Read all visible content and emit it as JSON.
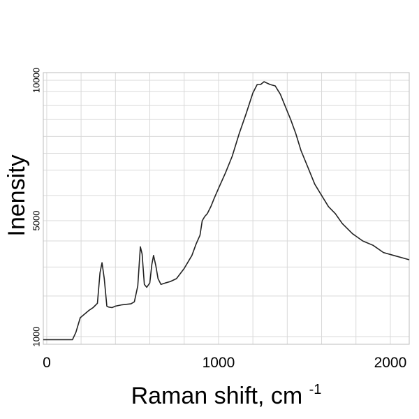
{
  "chart_data": {
    "type": "line",
    "title": "",
    "xlabel": "Raman shift, cm",
    "xlabel_superscript": "-1",
    "ylabel": "Inensity",
    "xlim": [
      -20,
      2110
    ],
    "ylim": [
      850,
      10100
    ],
    "x_ticks": [
      {
        "value": 0,
        "label": "0"
      },
      {
        "value": 1000,
        "label": "1000"
      },
      {
        "value": 2000,
        "label": "2000"
      }
    ],
    "y_ticks": [
      {
        "value": 1000,
        "label": "1000"
      },
      {
        "value": 5000,
        "label": "5000"
      },
      {
        "value": 10000,
        "label": "10000"
      }
    ],
    "x_grid_step": 200,
    "y_grid_values": [
      1000,
      2400,
      3400,
      4300,
      5000,
      5900,
      6800,
      7400,
      8000,
      8600,
      9100,
      9600,
      10000
    ],
    "grid": true,
    "series": [
      {
        "values_x": [
          -20,
          50,
          110,
          150,
          170,
          195,
          215,
          245,
          270,
          295,
          310,
          322,
          335,
          350,
          360,
          380,
          400,
          440,
          490,
          510,
          530,
          545,
          555,
          568,
          582,
          600,
          612,
          622,
          635,
          648,
          665,
          690,
          720,
          755,
          800,
          845,
          870,
          892,
          905,
          920,
          935,
          955,
          975,
          1000,
          1040,
          1080,
          1120,
          1160,
          1200,
          1225,
          1245,
          1265,
          1300,
          1330,
          1360,
          1380,
          1400,
          1420,
          1450,
          1480,
          1520,
          1560,
          1600,
          1640,
          1680,
          1720,
          1780,
          1840,
          1900,
          1960,
          2020,
          2080,
          2110
        ],
        "values_y": [
          940,
          940,
          940,
          940,
          1150,
          1650,
          1750,
          1900,
          2000,
          2150,
          3200,
          3550,
          3000,
          2050,
          2020,
          2000,
          2050,
          2100,
          2130,
          2200,
          2750,
          4100,
          3850,
          2800,
          2700,
          2850,
          3500,
          3800,
          3450,
          3000,
          2800,
          2850,
          2900,
          3000,
          3350,
          3800,
          4200,
          4500,
          5000,
          5150,
          5250,
          5500,
          5800,
          6150,
          6700,
          7300,
          8100,
          8800,
          9550,
          9850,
          9850,
          9950,
          9850,
          9800,
          9500,
          9200,
          8900,
          8600,
          8100,
          7500,
          6900,
          6300,
          5900,
          5500,
          5250,
          4900,
          4550,
          4300,
          4150,
          3900,
          3800,
          3700,
          3650
        ]
      }
    ]
  }
}
